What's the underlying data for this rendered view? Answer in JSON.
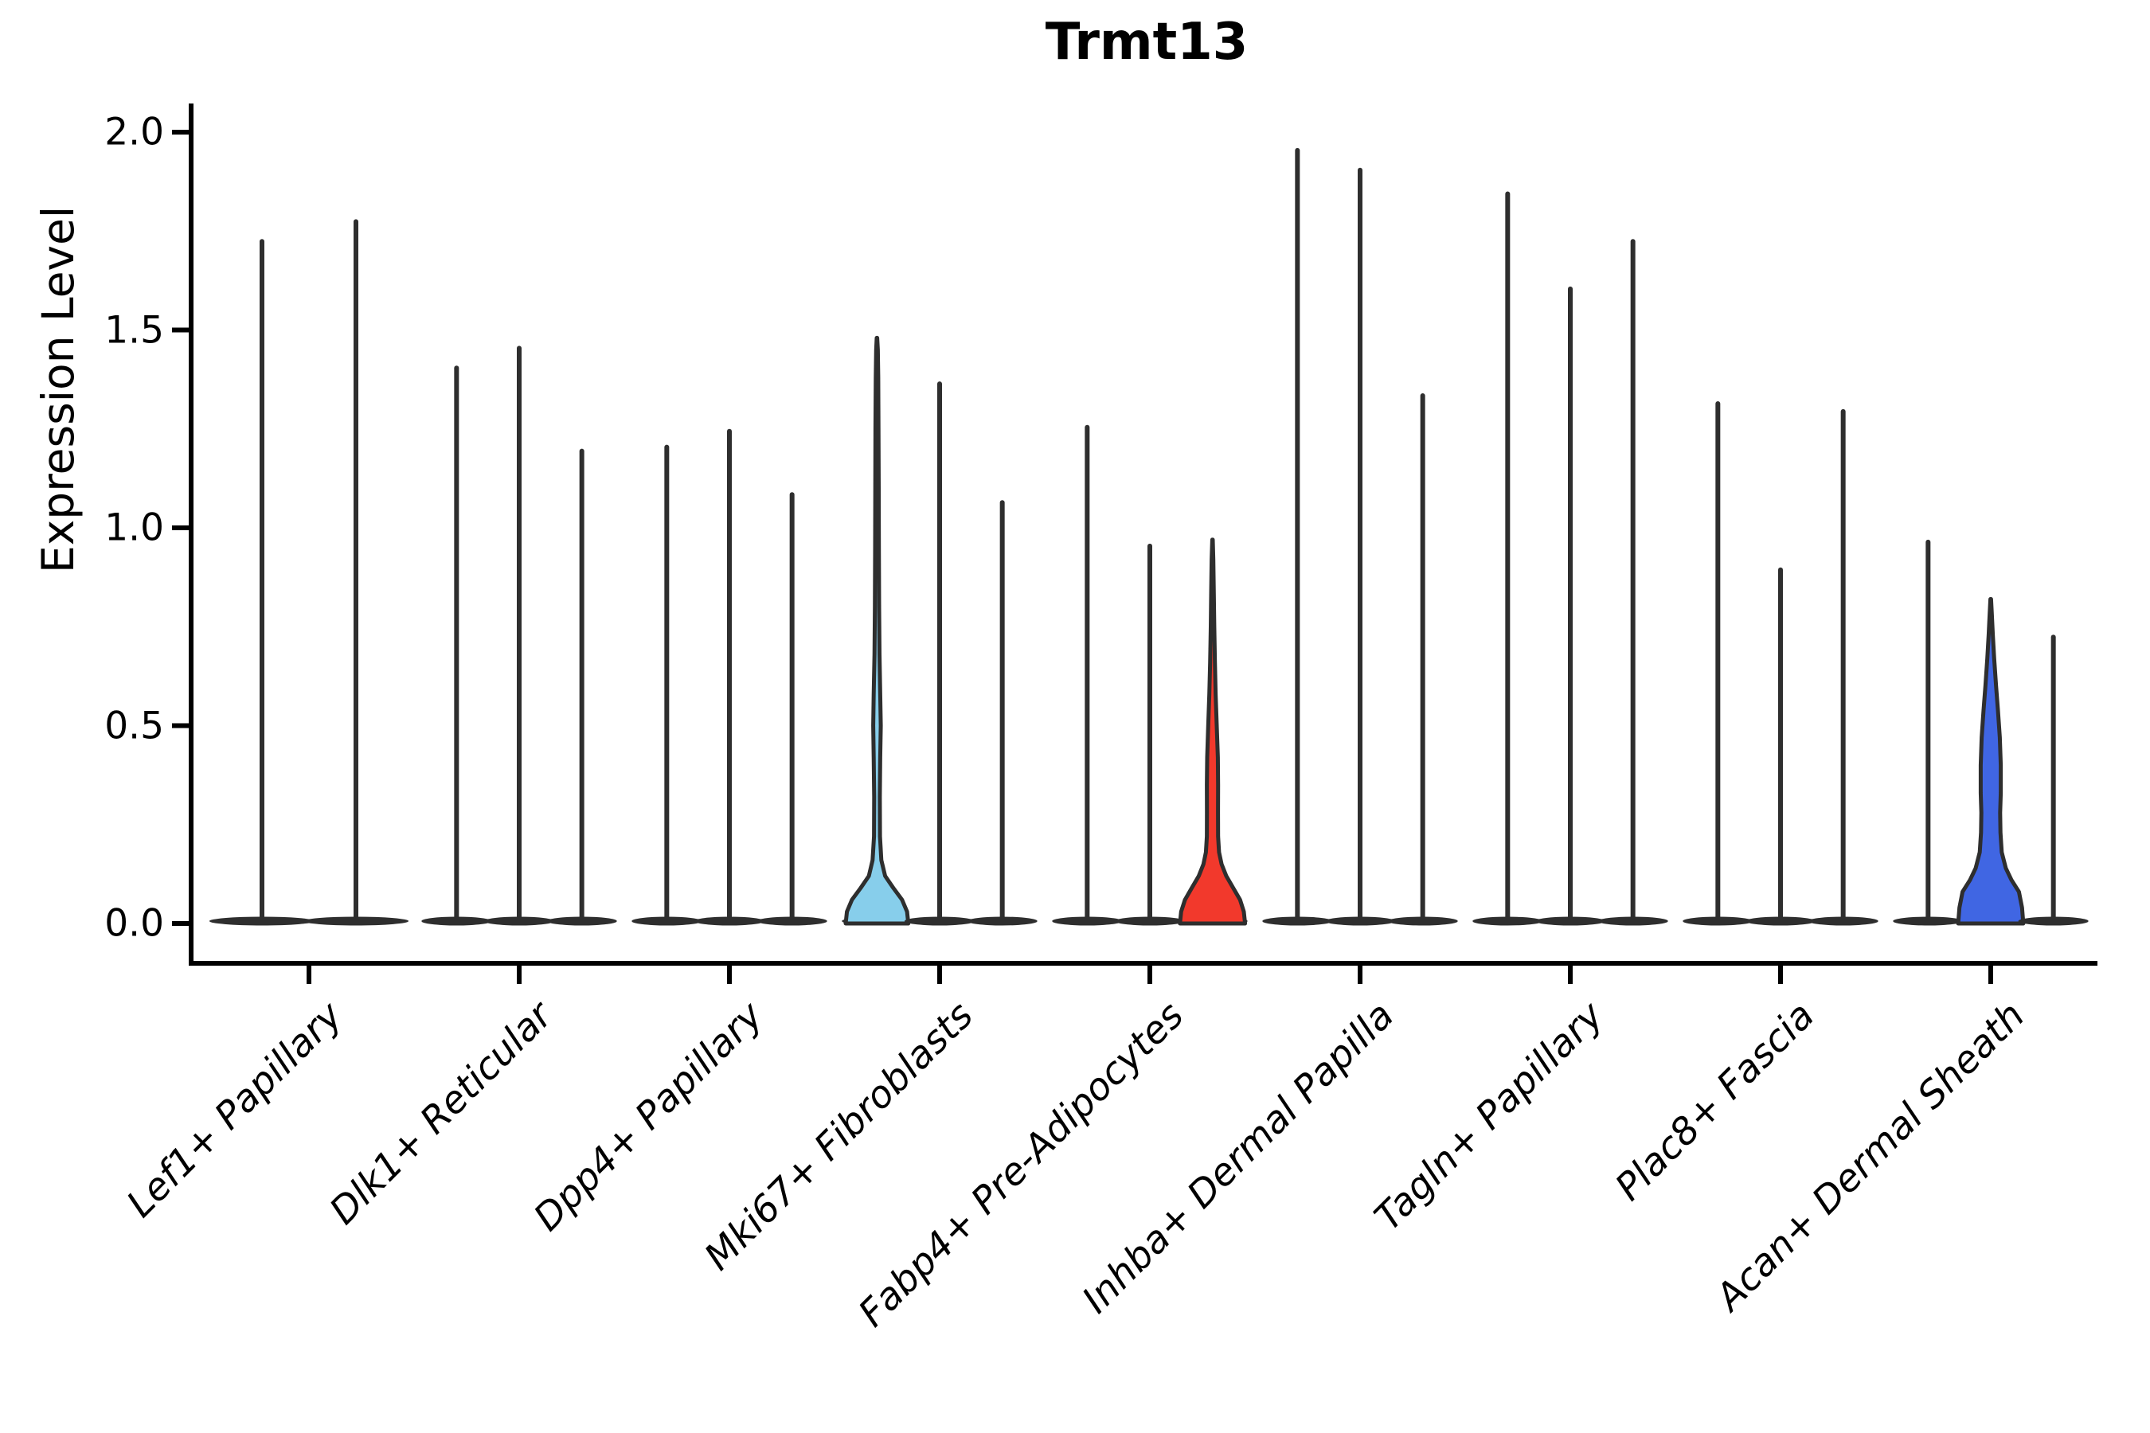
{
  "chart_data": {
    "type": "violin",
    "title": "Trmt13",
    "xlabel": "",
    "ylabel": "Expression Level",
    "ylim": [
      0,
      2.0
    ],
    "grid": false,
    "legend": "none",
    "y_ticks": [
      {
        "value": 0.0,
        "label": "0.0"
      },
      {
        "value": 0.5,
        "label": "0.5"
      },
      {
        "value": 1.0,
        "label": "1.0"
      },
      {
        "value": 1.5,
        "label": "1.5"
      },
      {
        "value": 2.0,
        "label": "2.0"
      }
    ],
    "colors": {
      "stroke": "#2E2E2E",
      "sky_blue_fill": "#87CEEB",
      "red_fill": "#F2392C",
      "royal_blue_fill": "#4066E3",
      "text": "#000000",
      "background": "#FFFFFF"
    },
    "categories": [
      {
        "name": "Lef1+ Papillary",
        "violins": [
          {
            "max": 1.73,
            "style": "spike"
          },
          {
            "max": 1.78,
            "style": "spike"
          }
        ]
      },
      {
        "name": "Dlk1+ Reticular",
        "violins": [
          {
            "max": 1.41,
            "style": "spike"
          },
          {
            "max": 1.46,
            "style": "spike"
          },
          {
            "max": 1.2,
            "style": "spike"
          }
        ]
      },
      {
        "name": "Dpp4+ Papillary",
        "violins": [
          {
            "max": 1.21,
            "style": "spike"
          },
          {
            "max": 1.25,
            "style": "spike"
          },
          {
            "max": 1.09,
            "style": "spike"
          }
        ]
      },
      {
        "name": "Mki67+ Fibroblasts",
        "violins": [
          {
            "max": 1.48,
            "style": "filled",
            "fill": "#87CEEB",
            "profile": [
              [
                0.0,
                0.5
              ],
              [
                0.03,
                0.48
              ],
              [
                0.06,
                0.4
              ],
              [
                0.09,
                0.26
              ],
              [
                0.12,
                0.13
              ],
              [
                0.16,
                0.07
              ],
              [
                0.22,
                0.048
              ],
              [
                0.32,
                0.045
              ],
              [
                0.42,
                0.052
              ],
              [
                0.5,
                0.06
              ],
              [
                0.58,
                0.052
              ],
              [
                0.68,
                0.04
              ],
              [
                0.8,
                0.034
              ],
              [
                0.95,
                0.03
              ],
              [
                1.1,
                0.027
              ],
              [
                1.25,
                0.024
              ],
              [
                1.38,
                0.02
              ],
              [
                1.45,
                0.013
              ],
              [
                1.48,
                0.004
              ]
            ]
          },
          {
            "max": 1.37,
            "style": "spike"
          },
          {
            "max": 1.07,
            "style": "spike"
          }
        ]
      },
      {
        "name": "Fabp4+ Pre-Adipocytes",
        "violins": [
          {
            "max": 1.26,
            "style": "spike"
          },
          {
            "max": 0.96,
            "style": "spike"
          },
          {
            "max": 0.97,
            "style": "filled",
            "fill": "#F2392C",
            "profile": [
              [
                0.0,
                0.52
              ],
              [
                0.03,
                0.5
              ],
              [
                0.06,
                0.44
              ],
              [
                0.09,
                0.33
              ],
              [
                0.12,
                0.22
              ],
              [
                0.15,
                0.145
              ],
              [
                0.18,
                0.105
              ],
              [
                0.22,
                0.09
              ],
              [
                0.28,
                0.088
              ],
              [
                0.35,
                0.09
              ],
              [
                0.42,
                0.085
              ],
              [
                0.5,
                0.068
              ],
              [
                0.58,
                0.05
              ],
              [
                0.66,
                0.038
              ],
              [
                0.75,
                0.028
              ],
              [
                0.85,
                0.02
              ],
              [
                0.92,
                0.013
              ],
              [
                0.97,
                0.004
              ]
            ]
          }
        ]
      },
      {
        "name": "Inhba+ Dermal Papilla",
        "violins": [
          {
            "max": 1.96,
            "style": "spike"
          },
          {
            "max": 1.91,
            "style": "spike"
          },
          {
            "max": 1.34,
            "style": "spike"
          }
        ]
      },
      {
        "name": "Tagln+ Papillary",
        "violins": [
          {
            "max": 1.85,
            "style": "spike"
          },
          {
            "max": 1.61,
            "style": "spike"
          },
          {
            "max": 1.73,
            "style": "spike"
          }
        ]
      },
      {
        "name": "Plac8+ Fascia",
        "violins": [
          {
            "max": 1.32,
            "style": "spike"
          },
          {
            "max": 0.9,
            "style": "spike"
          },
          {
            "max": 1.3,
            "style": "spike"
          }
        ]
      },
      {
        "name": "Acan+ Dermal Sheath",
        "violins": [
          {
            "max": 0.97,
            "style": "spike"
          },
          {
            "max": 0.82,
            "style": "filled",
            "fill": "#4066E3",
            "profile": [
              [
                0.0,
                0.52
              ],
              [
                0.04,
                0.5
              ],
              [
                0.08,
                0.45
              ],
              [
                0.11,
                0.33
              ],
              [
                0.14,
                0.24
              ],
              [
                0.18,
                0.175
              ],
              [
                0.23,
                0.155
              ],
              [
                0.28,
                0.15
              ],
              [
                0.33,
                0.16
              ],
              [
                0.4,
                0.16
              ],
              [
                0.47,
                0.145
              ],
              [
                0.54,
                0.115
              ],
              [
                0.6,
                0.085
              ],
              [
                0.67,
                0.055
              ],
              [
                0.73,
                0.033
              ],
              [
                0.78,
                0.018
              ],
              [
                0.82,
                0.005
              ]
            ]
          },
          {
            "max": 0.73,
            "style": "spike"
          }
        ]
      }
    ]
  }
}
